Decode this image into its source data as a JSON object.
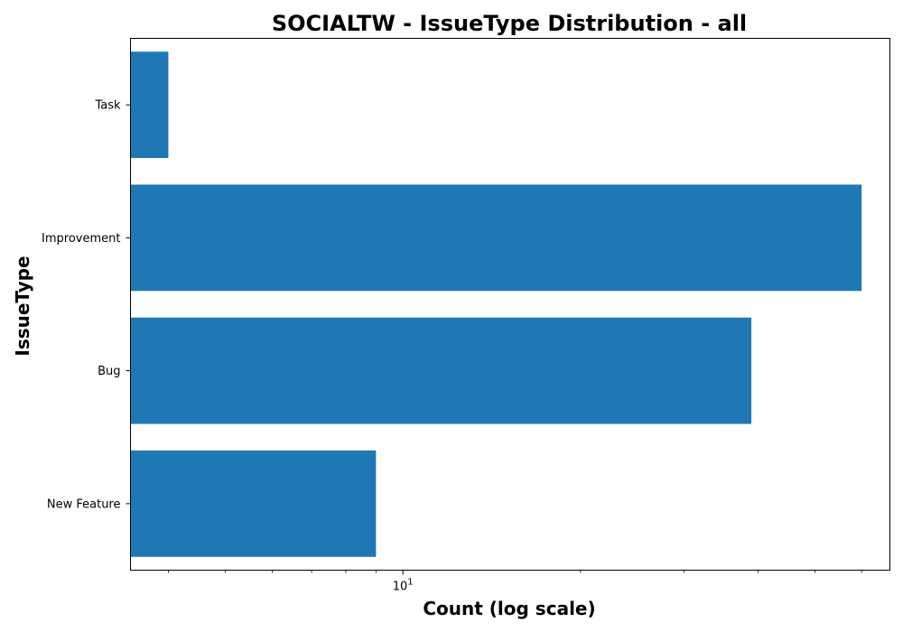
{
  "chart_data": {
    "type": "bar",
    "orientation": "horizontal",
    "title": "SOCIALTW - IssueType Distribution - all",
    "xlabel": "Count (log scale)",
    "ylabel": "IssueType",
    "x_scale": "log",
    "xlim": [
      3.45,
      67
    ],
    "categories": [
      "Task",
      "Improvement",
      "Bug",
      "New Feature"
    ],
    "values": [
      4,
      60,
      39,
      9
    ],
    "x_ticks": [
      {
        "base": "10",
        "exponent": "1",
        "value": 10
      }
    ],
    "bar_color": "#1f77b4",
    "grid": false,
    "legend": "none"
  }
}
